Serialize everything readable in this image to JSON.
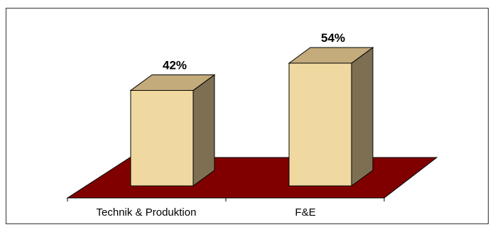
{
  "chart_data": {
    "type": "bar",
    "style": "3d-column",
    "categories": [
      "Technik & Produktion",
      "F&E"
    ],
    "values": [
      42,
      54
    ],
    "data_labels": [
      "42%",
      "54%"
    ],
    "ylim": [
      0,
      60
    ],
    "grid": false,
    "legend": "none",
    "colors": {
      "bar_front": "#F0D9A0",
      "bar_top": "#C4AB7C",
      "bar_side": "#7E6F52",
      "floor": "#800000",
      "outline": "#000000"
    }
  }
}
